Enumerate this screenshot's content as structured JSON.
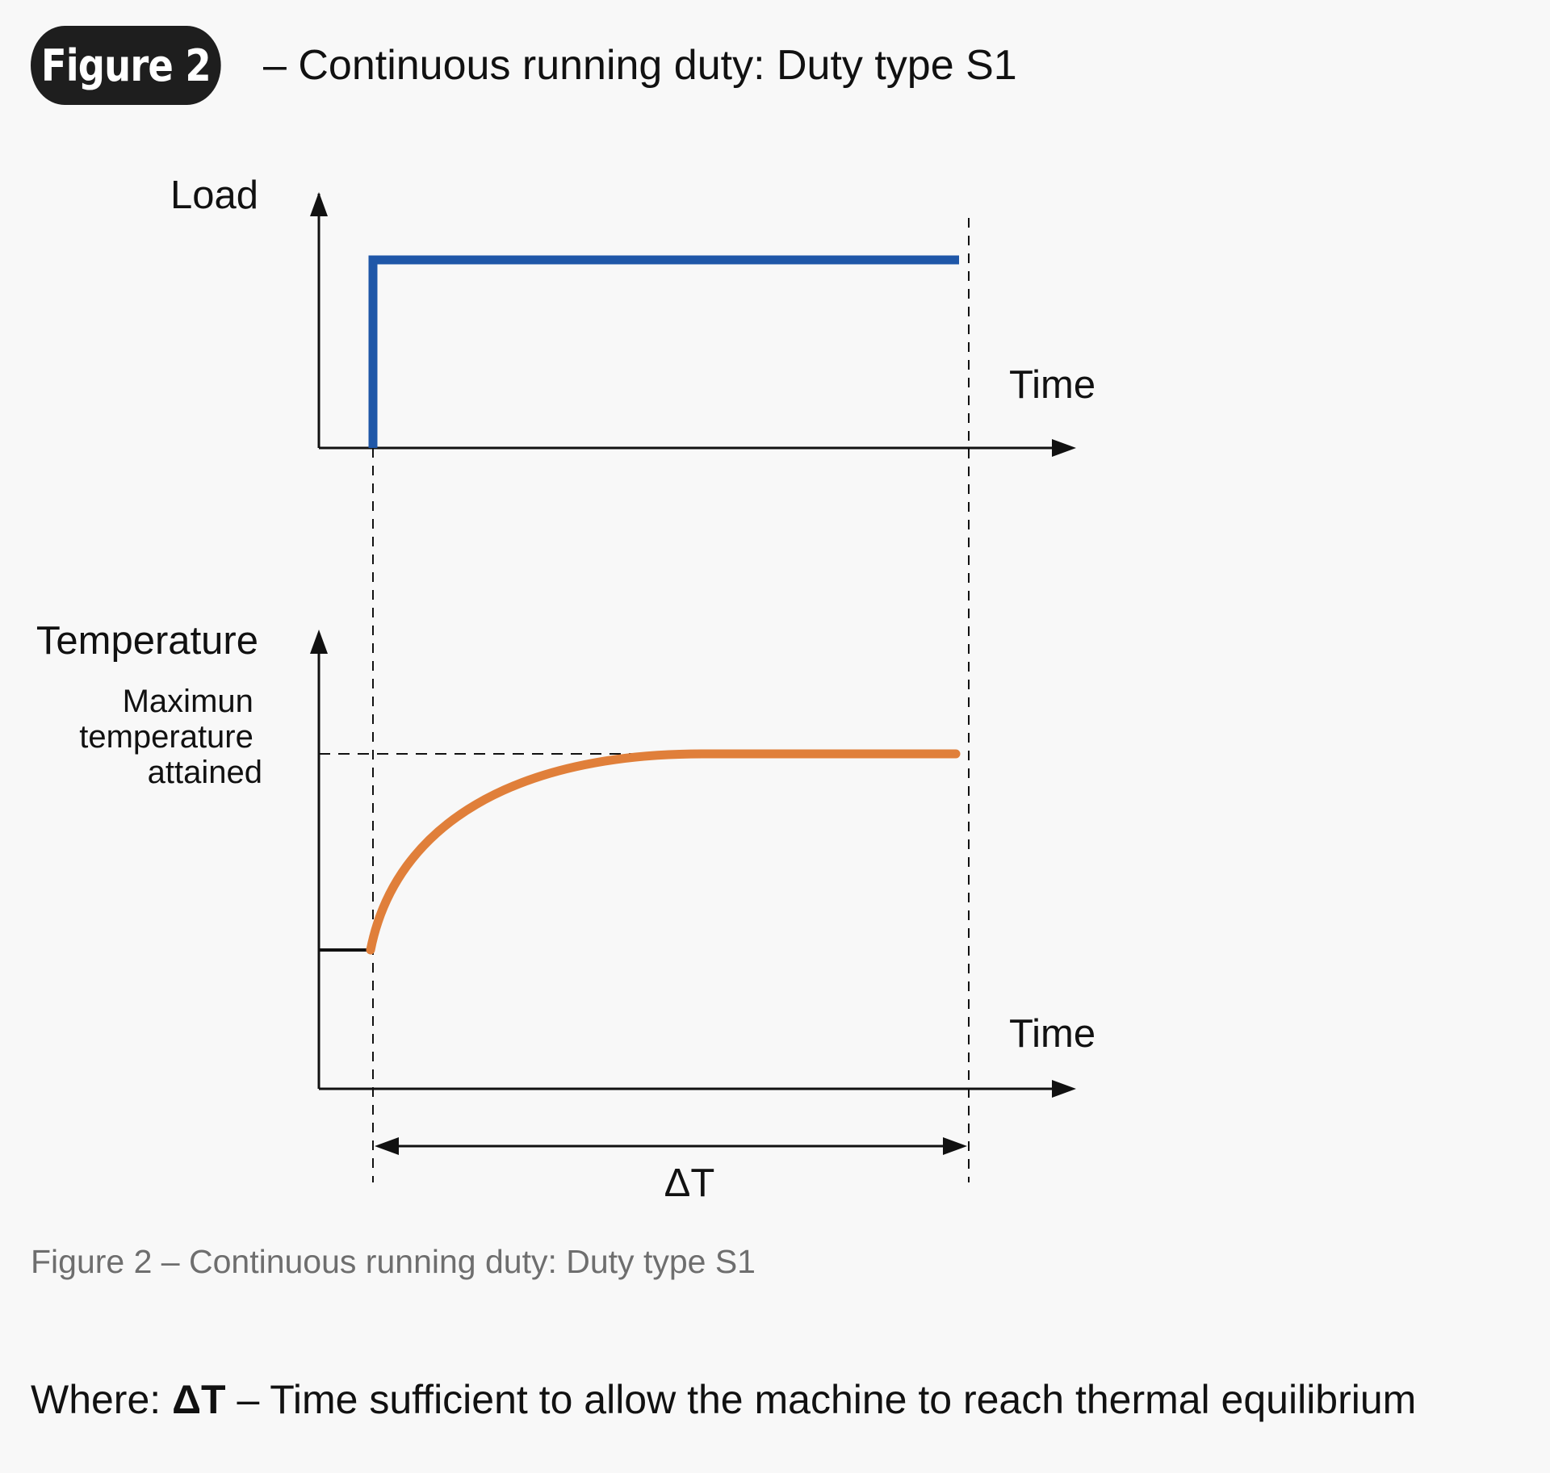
{
  "header": {
    "badge": "Figure 2",
    "title": "– Continuous running duty: Duty type S1"
  },
  "diagram": {
    "load_axis_label": "Load",
    "load_time_label": "Time",
    "temp_axis_label": "Temperature",
    "max_temp_label_lines": [
      "Maximun",
      "temperature",
      "attained"
    ],
    "temp_time_label": "Time",
    "delta_label": "ΔT",
    "load_line_color": "#1f57a8",
    "temp_curve_color": "#e07f3a",
    "axis_color": "#111111"
  },
  "caption": "Figure 2 – Continuous running duty: Duty type S1",
  "footnote": {
    "prefix": "Where: ",
    "symbol": "ΔT",
    "text": " – Time sufficient to allow the machine to reach thermal equilibrium"
  }
}
